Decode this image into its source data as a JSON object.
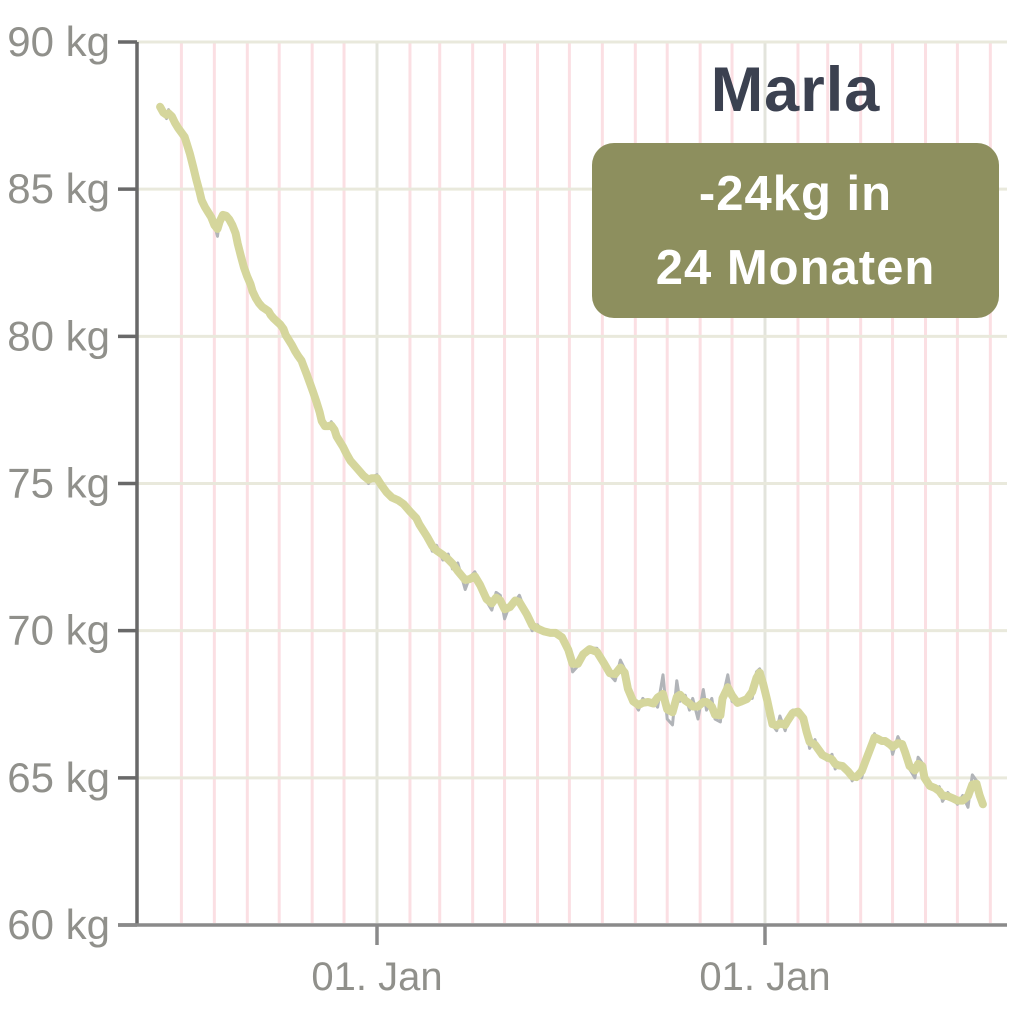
{
  "header": {
    "title": "Marla",
    "badge_line1": "-24kg in",
    "badge_line2": "24 Monaten"
  },
  "colors": {
    "background": "#ffffff",
    "title_text": "#3b4150",
    "badge_background": "#8d8f5e",
    "badge_text": "#ffffff",
    "weight_line": "#d5d69c",
    "weight_line_undercoat": "#b1b4b8",
    "grid_horizontal": "#e9e9dc",
    "grid_month_vertical": "#fbdfe3",
    "grid_year_vertical": "#e3e4dc",
    "y_axis": "#696969",
    "x_axis": "#8a8a8a",
    "tick_label": "#90908b"
  },
  "chart_data": {
    "type": "line",
    "title": "Marla",
    "annotation": "-24kg in 24 Monaten",
    "y_unit": "kg",
    "ylim": [
      60,
      90
    ],
    "y_ticks": [
      {
        "label": "90 kg",
        "value": 90
      },
      {
        "label": "85 kg",
        "value": 85
      },
      {
        "label": "80 kg",
        "value": 80
      },
      {
        "label": "75 kg",
        "value": 75
      },
      {
        "label": "70 kg",
        "value": 70
      },
      {
        "label": "65 kg",
        "value": 65
      },
      {
        "label": "60 kg",
        "value": 60
      }
    ],
    "x_ticks": [
      {
        "label": "01. Jan",
        "day": 204
      },
      {
        "label": "01. Jan",
        "day": 569
      }
    ],
    "x_span_days": 776,
    "grid": {
      "horizontal": true,
      "monthly_vertical_days": [
        20,
        51,
        82,
        112,
        143,
        173,
        235,
        263,
        294,
        324,
        355,
        385,
        416,
        447,
        477,
        508,
        538,
        600,
        628,
        659,
        689,
        720,
        750,
        781
      ],
      "year_vertical_days": [
        204,
        569
      ]
    },
    "series": [
      {
        "name": "weight_kg",
        "color": "#d5d69c",
        "start_kg": 87.8,
        "end_kg": 64.1,
        "points": [
          [
            0,
            87.8
          ],
          [
            3,
            87.6
          ],
          [
            6,
            87.4
          ],
          [
            8,
            87.7
          ],
          [
            11,
            87.5
          ],
          [
            14,
            87.2
          ],
          [
            17,
            87.1
          ],
          [
            20,
            86.9
          ],
          [
            23,
            86.8
          ],
          [
            25,
            86.6
          ],
          [
            28,
            86.2
          ],
          [
            31,
            85.8
          ],
          [
            34,
            85.3
          ],
          [
            37,
            84.9
          ],
          [
            39,
            84.6
          ],
          [
            42,
            84.4
          ],
          [
            45,
            84.2
          ],
          [
            48,
            84.1
          ],
          [
            51,
            83.8
          ],
          [
            54,
            83.4
          ],
          [
            56,
            84.0
          ],
          [
            59,
            84.2
          ],
          [
            62,
            84.1
          ],
          [
            65,
            84.0
          ],
          [
            68,
            83.8
          ],
          [
            71,
            83.5
          ],
          [
            73,
            83.2
          ],
          [
            76,
            82.7
          ],
          [
            79,
            82.3
          ],
          [
            82,
            82.0
          ],
          [
            85,
            81.8
          ],
          [
            87,
            81.5
          ],
          [
            90,
            81.3
          ],
          [
            93,
            81.1
          ],
          [
            96,
            81.0
          ],
          [
            99,
            80.9
          ],
          [
            102,
            80.9
          ],
          [
            104,
            80.7
          ],
          [
            107,
            80.6
          ],
          [
            110,
            80.5
          ],
          [
            113,
            80.4
          ],
          [
            116,
            80.3
          ],
          [
            118,
            80.0
          ],
          [
            121,
            79.9
          ],
          [
            124,
            79.7
          ],
          [
            127,
            79.5
          ],
          [
            130,
            79.3
          ],
          [
            133,
            79.2
          ],
          [
            135,
            79.0
          ],
          [
            138,
            78.7
          ],
          [
            141,
            78.4
          ],
          [
            144,
            78.1
          ],
          [
            147,
            77.8
          ],
          [
            150,
            77.4
          ],
          [
            152,
            77.1
          ],
          [
            155,
            76.9
          ],
          [
            158,
            76.9
          ],
          [
            161,
            77.1
          ],
          [
            164,
            76.8
          ],
          [
            166,
            76.6
          ],
          [
            169,
            76.4
          ],
          [
            172,
            76.3
          ],
          [
            175,
            76.0
          ],
          [
            179,
            75.8
          ],
          [
            185,
            75.5
          ],
          [
            191,
            75.3
          ],
          [
            196,
            75.0
          ],
          [
            199,
            75.2
          ],
          [
            204,
            75.3
          ],
          [
            208,
            74.9
          ],
          [
            213,
            74.7
          ],
          [
            218,
            74.5
          ],
          [
            224,
            74.4
          ],
          [
            229,
            74.4
          ],
          [
            235,
            74.0
          ],
          [
            241,
            73.8
          ],
          [
            244,
            73.7
          ],
          [
            251,
            73.2
          ],
          [
            256,
            72.7
          ],
          [
            260,
            72.9
          ],
          [
            266,
            72.4
          ],
          [
            271,
            72.6
          ],
          [
            275,
            72.1
          ],
          [
            280,
            72.3
          ],
          [
            287,
            71.4
          ],
          [
            291,
            71.8
          ],
          [
            296,
            72.0
          ],
          [
            301,
            71.6
          ],
          [
            307,
            71.0
          ],
          [
            312,
            70.7
          ],
          [
            316,
            71.3
          ],
          [
            320,
            71.2
          ],
          [
            324,
            70.4
          ],
          [
            329,
            70.9
          ],
          [
            334,
            71.0
          ],
          [
            338,
            71.2
          ],
          [
            345,
            70.5
          ],
          [
            350,
            70.0
          ],
          [
            355,
            70.2
          ],
          [
            361,
            69.9
          ],
          [
            367,
            69.9
          ],
          [
            372,
            70.0
          ],
          [
            378,
            69.8
          ],
          [
            384,
            69.5
          ],
          [
            388,
            68.6
          ],
          [
            393,
            68.8
          ],
          [
            398,
            69.3
          ],
          [
            404,
            69.4
          ],
          [
            411,
            69.4
          ],
          [
            417,
            68.9
          ],
          [
            423,
            68.5
          ],
          [
            428,
            68.3
          ],
          [
            433,
            69.0
          ],
          [
            437,
            68.7
          ],
          [
            440,
            67.9
          ],
          [
            445,
            67.6
          ],
          [
            450,
            67.3
          ],
          [
            454,
            67.7
          ],
          [
            459,
            67.5
          ],
          [
            464,
            67.6
          ],
          [
            468,
            67.4
          ],
          [
            473,
            68.5
          ],
          [
            477,
            67.0
          ],
          [
            482,
            66.8
          ],
          [
            486,
            68.3
          ],
          [
            489,
            67.6
          ],
          [
            494,
            67.8
          ],
          [
            498,
            67.3
          ],
          [
            501,
            67.7
          ],
          [
            506,
            67.0
          ],
          [
            511,
            68.0
          ],
          [
            514,
            67.3
          ],
          [
            519,
            67.7
          ],
          [
            522,
            67.0
          ],
          [
            527,
            66.9
          ],
          [
            529,
            67.7
          ],
          [
            534,
            68.5
          ],
          [
            538,
            67.6
          ],
          [
            543,
            67.5
          ],
          [
            547,
            67.6
          ],
          [
            552,
            67.7
          ],
          [
            557,
            67.7
          ],
          [
            561,
            68.6
          ],
          [
            564,
            68.7
          ],
          [
            567,
            68.3
          ],
          [
            571,
            67.6
          ],
          [
            574,
            67.1
          ],
          [
            576,
            66.8
          ],
          [
            580,
            66.6
          ],
          [
            583,
            67.1
          ],
          [
            588,
            66.6
          ],
          [
            590,
            66.9
          ],
          [
            595,
            67.3
          ],
          [
            600,
            67.3
          ],
          [
            605,
            67.1
          ],
          [
            608,
            66.6
          ],
          [
            611,
            66.0
          ],
          [
            616,
            66.3
          ],
          [
            619,
            65.9
          ],
          [
            623,
            65.8
          ],
          [
            627,
            65.6
          ],
          [
            632,
            65.8
          ],
          [
            635,
            65.3
          ],
          [
            638,
            65.5
          ],
          [
            642,
            65.4
          ],
          [
            647,
            65.3
          ],
          [
            651,
            64.9
          ],
          [
            655,
            65.1
          ],
          [
            660,
            65.0
          ],
          [
            665,
            65.8
          ],
          [
            670,
            66.2
          ],
          [
            672,
            66.5
          ],
          [
            675,
            66.3
          ],
          [
            679,
            66.2
          ],
          [
            682,
            66.3
          ],
          [
            687,
            66.2
          ],
          [
            689,
            65.8
          ],
          [
            694,
            66.4
          ],
          [
            698,
            66.1
          ],
          [
            701,
            66.0
          ],
          [
            705,
            65.3
          ],
          [
            710,
            65.0
          ],
          [
            713,
            65.7
          ],
          [
            717,
            65.5
          ],
          [
            719,
            64.9
          ],
          [
            724,
            64.7
          ],
          [
            729,
            64.6
          ],
          [
            733,
            64.7
          ],
          [
            736,
            64.2
          ],
          [
            741,
            64.5
          ],
          [
            746,
            64.3
          ],
          [
            750,
            64.1
          ],
          [
            755,
            64.4
          ],
          [
            760,
            64.0
          ],
          [
            764,
            65.1
          ],
          [
            768,
            64.9
          ],
          [
            771,
            64.3
          ],
          [
            774,
            64.1
          ]
        ]
      }
    ]
  }
}
